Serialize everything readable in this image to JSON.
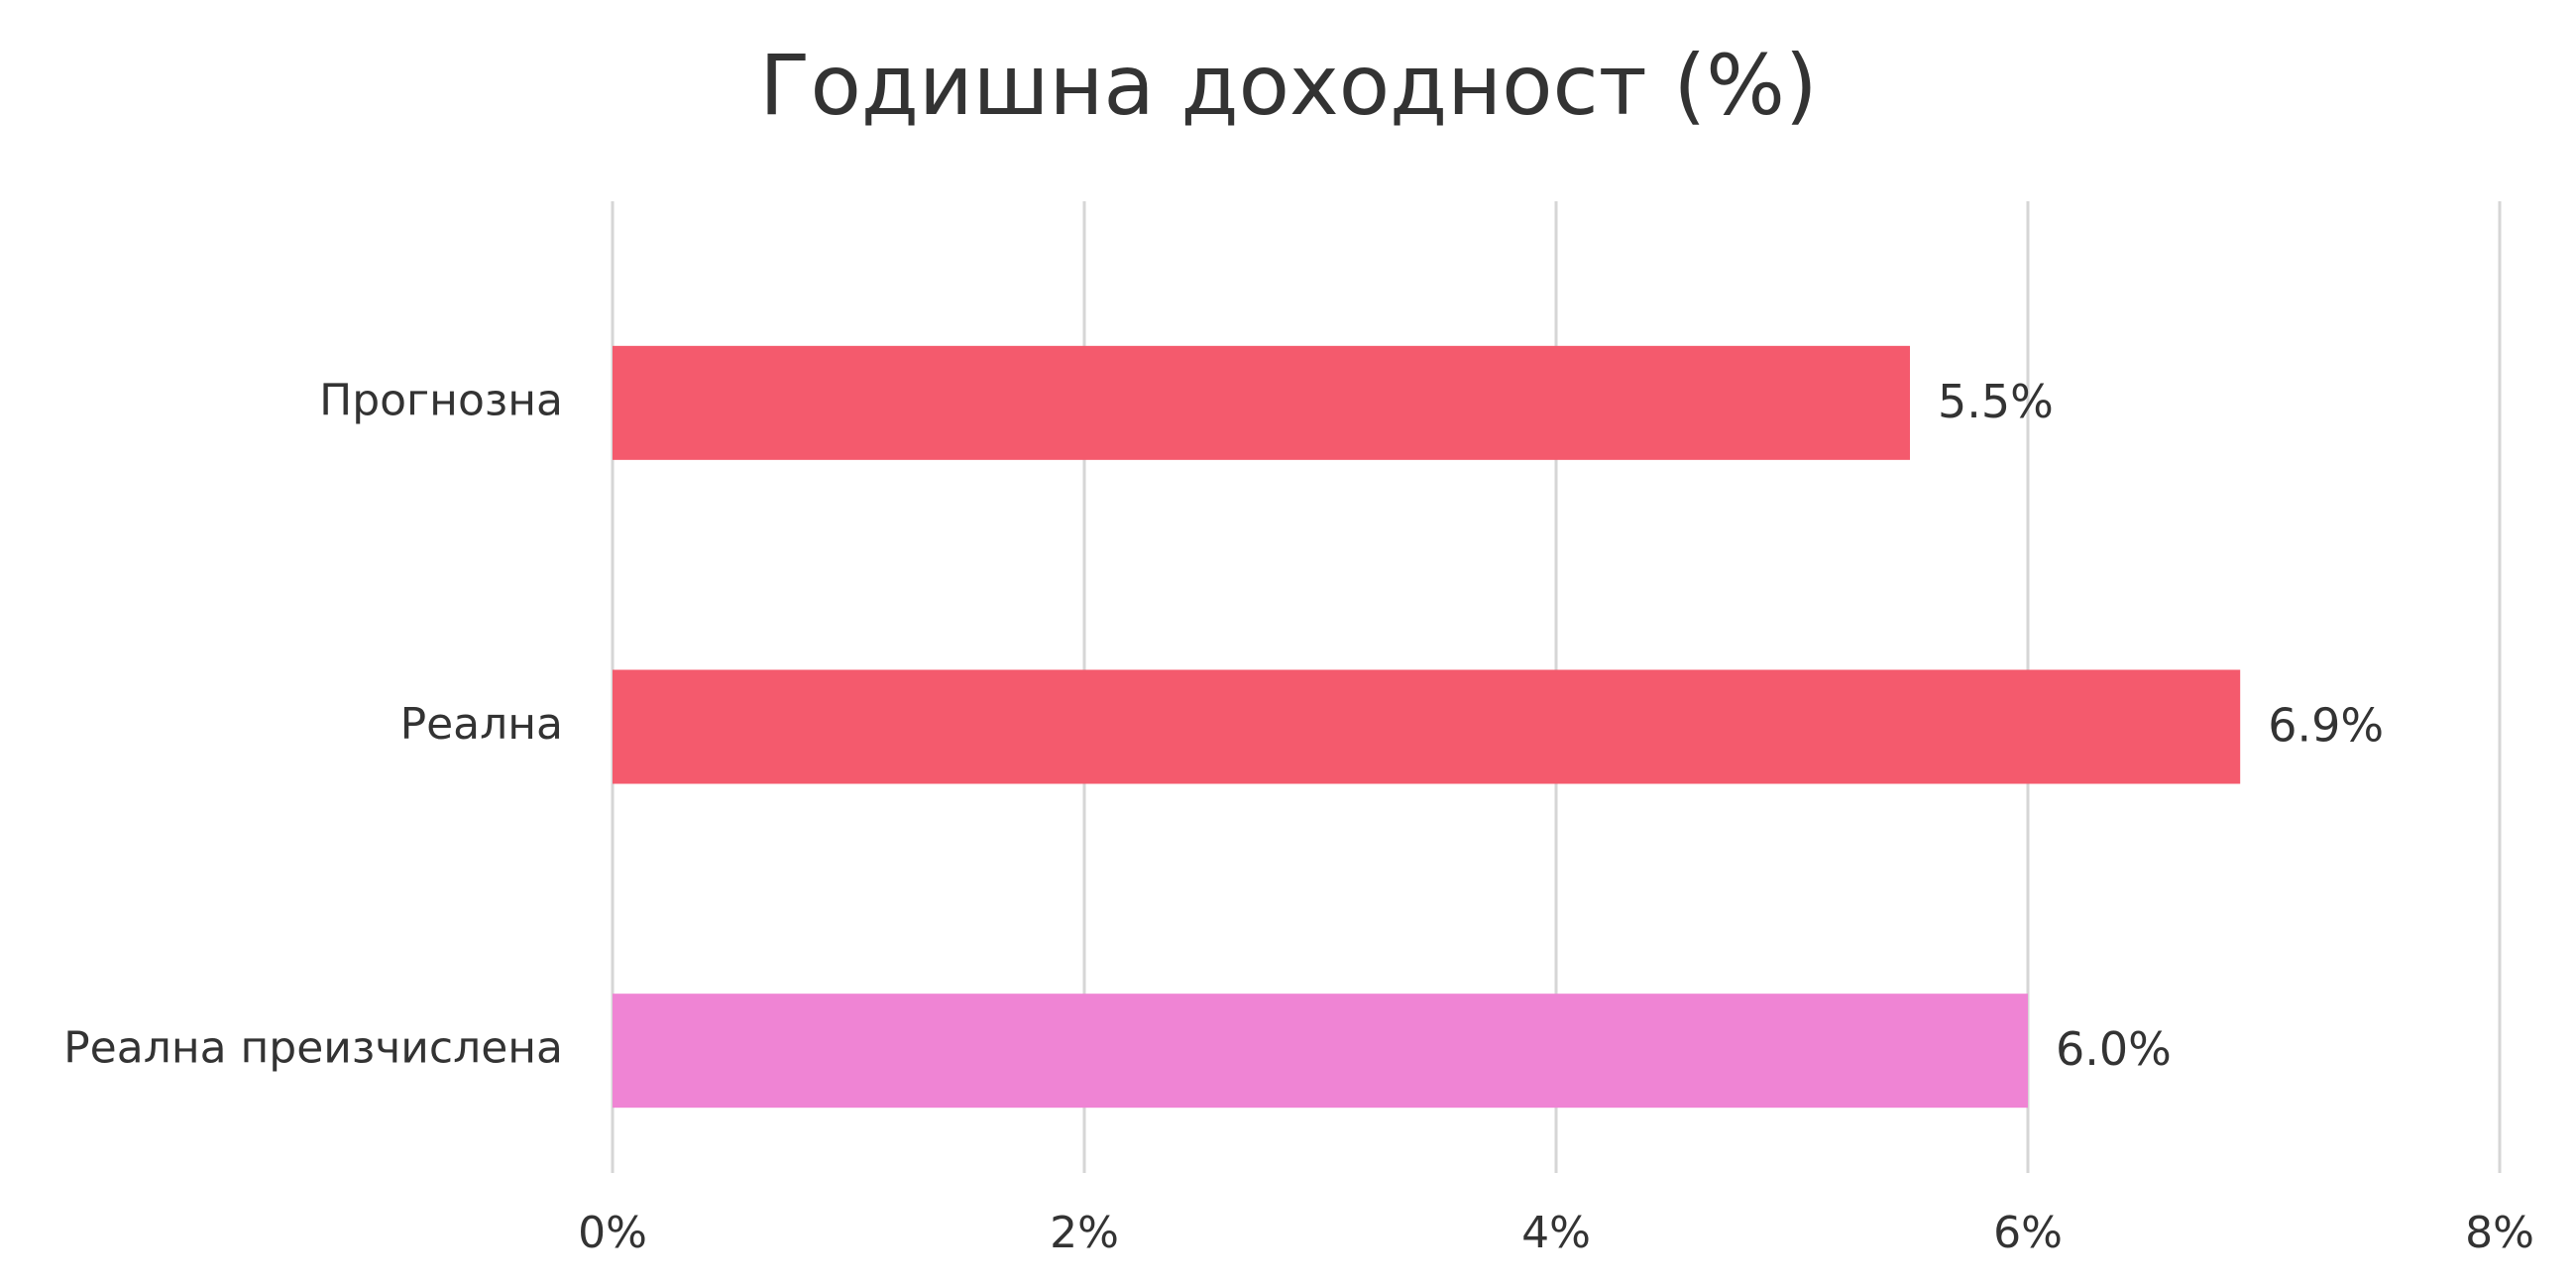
{
  "chart_data": {
    "type": "barh",
    "title": "Годишна доходност (%)",
    "categories": [
      "Прогнозна",
      "Реална",
      "Реална преизчислена"
    ],
    "values": [
      5.5,
      6.9,
      6.0
    ],
    "value_labels": [
      "5.5%",
      "6.9%",
      "6.0%"
    ],
    "colors": [
      "#f45a6d",
      "#f45a6d",
      "#ef84d4"
    ],
    "xlim": [
      0,
      8
    ],
    "xticks": [
      {
        "value": 0,
        "label": "0%"
      },
      {
        "value": 2,
        "label": "2%"
      },
      {
        "value": 4,
        "label": "4%"
      },
      {
        "value": 6,
        "label": "6%"
      },
      {
        "value": 8,
        "label": "8%"
      }
    ],
    "grid": true
  }
}
